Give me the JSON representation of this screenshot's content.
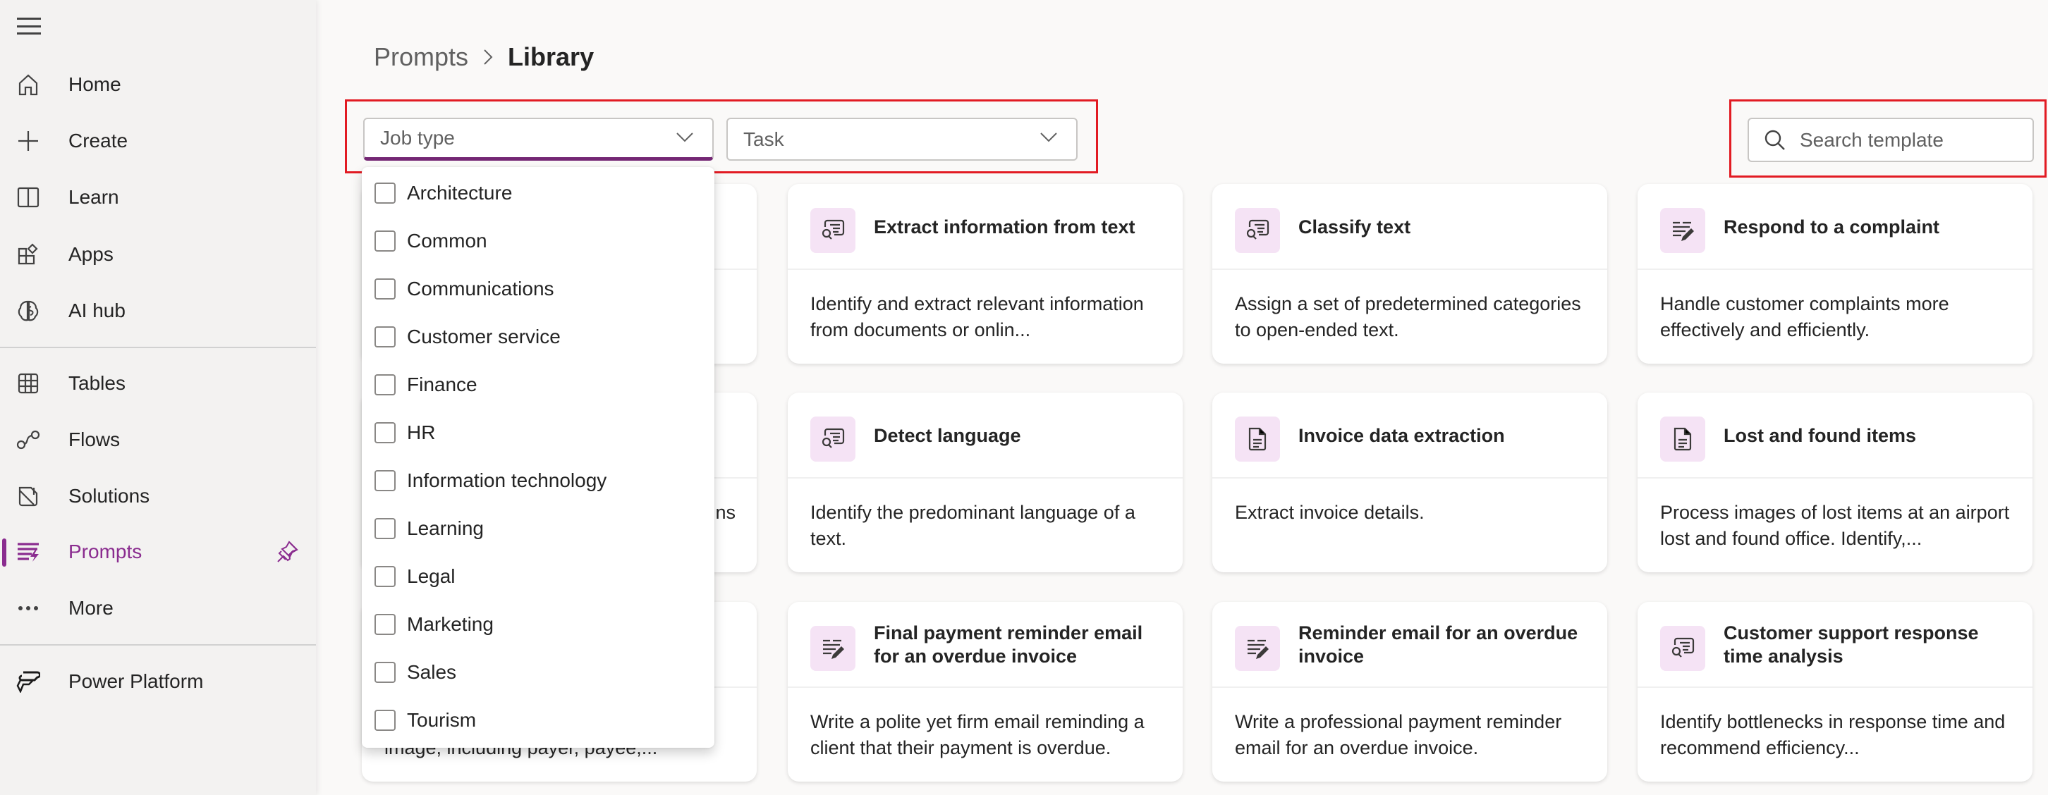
{
  "sidebar": {
    "menu_icon": "hamburger-icon",
    "items": [
      {
        "label": "Home",
        "icon": "home-icon"
      },
      {
        "label": "Create",
        "icon": "plus-icon"
      },
      {
        "label": "Learn",
        "icon": "book-icon"
      },
      {
        "label": "Apps",
        "icon": "apps-icon"
      },
      {
        "label": "AI hub",
        "icon": "brain-icon"
      },
      {
        "label": "Tables",
        "icon": "table-icon"
      },
      {
        "label": "Flows",
        "icon": "flow-icon"
      },
      {
        "label": "Solutions",
        "icon": "solutions-icon"
      },
      {
        "label": "Prompts",
        "icon": "prompts-icon",
        "active": true,
        "pinned": true
      },
      {
        "label": "More",
        "icon": "more-icon"
      },
      {
        "label": "Power Platform",
        "icon": "power-platform-icon"
      }
    ],
    "accent": "#8a2c8f"
  },
  "breadcrumb": {
    "parent": "Prompts",
    "current": "Library"
  },
  "filters": {
    "job_type": {
      "placeholder": "Job type",
      "expanded": true
    },
    "task": {
      "placeholder": "Task"
    },
    "job_type_options": [
      "Architecture",
      "Common",
      "Communications",
      "Customer service",
      "Finance",
      "HR",
      "Information technology",
      "Learning",
      "Legal",
      "Marketing",
      "Sales",
      "Tourism"
    ]
  },
  "search": {
    "placeholder": "Search template"
  },
  "cards": [
    {
      "title": "",
      "desc": "",
      "icon": ""
    },
    {
      "title": "Extract information from text",
      "desc": "Identify and extract relevant information from documents or onlin...",
      "icon": "chat-search-icon"
    },
    {
      "title": "Classify text",
      "desc": "Assign a set of predetermined categories to open-ended text.",
      "icon": "chat-search-icon"
    },
    {
      "title": "Respond to a complaint",
      "desc": "Handle customer complaints more effectively and efficiently.",
      "icon": "text-edit-icon"
    },
    {
      "title": "",
      "desc": "",
      "partial": "ns",
      "icon": ""
    },
    {
      "title": "Detect language",
      "desc": "Identify the predominant language of a text.",
      "icon": "chat-search-icon"
    },
    {
      "title": "Invoice data extraction",
      "desc": "Extract invoice details.",
      "icon": "document-icon"
    },
    {
      "title": "Lost and found items",
      "desc": "Process images of lost items at an airport lost and found office. Identify,...",
      "icon": "document-icon"
    },
    {
      "title": "",
      "desc": "",
      "partial": "image, including payer, payee,...",
      "icon": ""
    },
    {
      "title": "Final payment reminder email for an overdue invoice",
      "desc": "Write a polite yet firm email reminding a client that their payment is overdue.",
      "icon": "text-edit-icon"
    },
    {
      "title": "Reminder email for an overdue invoice",
      "desc": "Write a professional payment reminder email for an overdue invoice.",
      "icon": "text-edit-icon"
    },
    {
      "title": "Customer support response time analysis",
      "desc": "Identify bottlenecks in response time and recommend efficiency...",
      "icon": "chat-search-icon"
    }
  ],
  "colors": {
    "highlight_box": "#e21b23",
    "icon_bg": "#f5e3f5",
    "focus_underline": "#742774"
  }
}
